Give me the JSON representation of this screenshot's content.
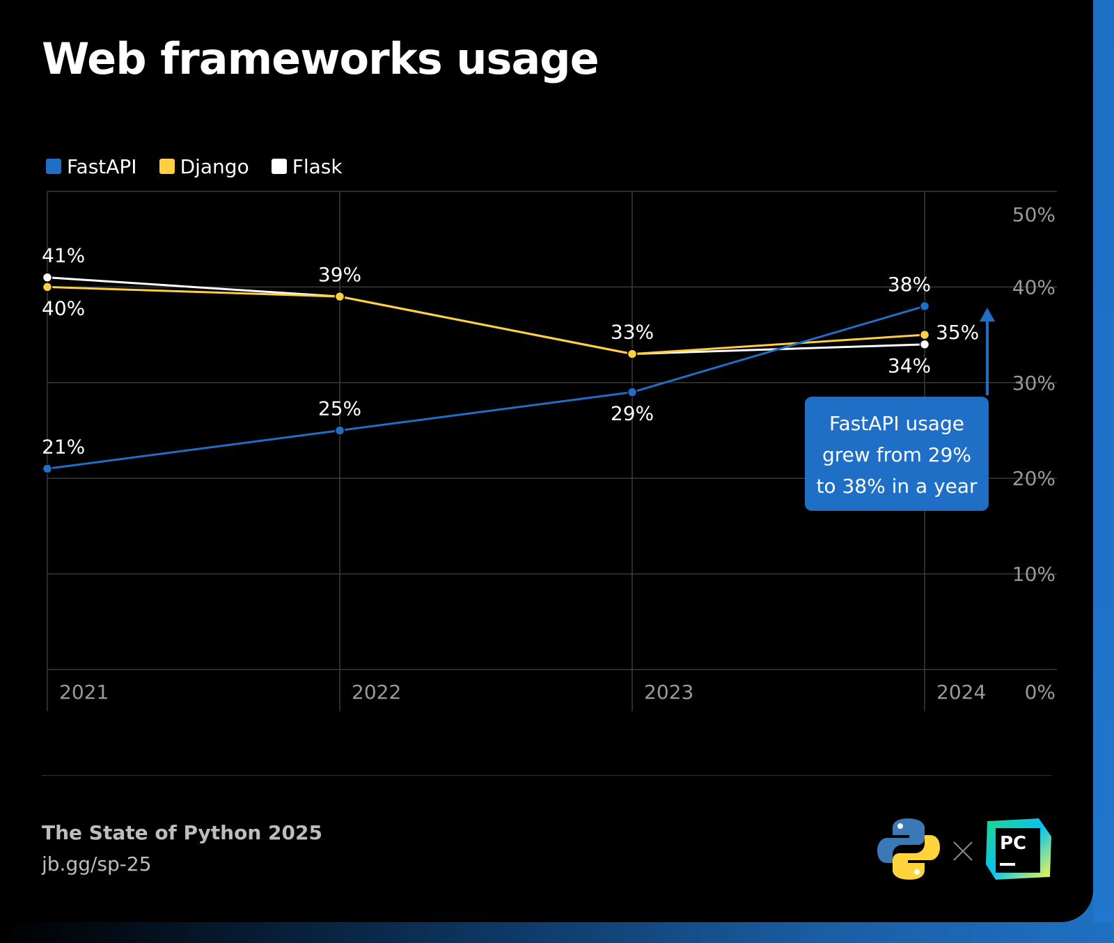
{
  "title": "Web frameworks usage",
  "legend": [
    {
      "label": "FastAPI",
      "color": "#1f6fc6"
    },
    {
      "label": "Django",
      "color": "#ffcf3f"
    },
    {
      "label": "Flask",
      "color": "#ffffff"
    }
  ],
  "chart_data": {
    "type": "line",
    "title": "Web frameworks usage",
    "x": [
      "2021",
      "2022",
      "2023",
      "2024"
    ],
    "ylim": [
      0,
      50
    ],
    "yticks": [
      0,
      10,
      20,
      30,
      40,
      50
    ],
    "ytick_labels": [
      "0%",
      "10%",
      "20%",
      "30%",
      "40%",
      "50%"
    ],
    "grid": true,
    "legend_position": "top-left",
    "series": [
      {
        "name": "FastAPI",
        "color": "#1f6fc6",
        "values": [
          21,
          25,
          29,
          38
        ],
        "labels": [
          "21%",
          "25%",
          "29%",
          "38%"
        ]
      },
      {
        "name": "Django",
        "color": "#ffcf3f",
        "values": [
          40,
          39,
          33,
          35
        ],
        "labels": [
          "40%",
          "39%",
          "33%",
          "35%"
        ]
      },
      {
        "name": "Flask",
        "color": "#ffffff",
        "values": [
          41,
          39,
          33,
          34
        ],
        "labels": [
          "41%",
          "",
          "",
          "34%"
        ]
      }
    ],
    "annotation": {
      "lines": [
        "FastAPI usage",
        "grew from 29%",
        "to 38% in a year"
      ],
      "color": "#1f6fc6"
    }
  },
  "footer": {
    "title": "The State of Python 2025",
    "link": "jb.gg/sp-25"
  },
  "logos": {
    "separator": "×",
    "pycharm_text": "PC"
  }
}
